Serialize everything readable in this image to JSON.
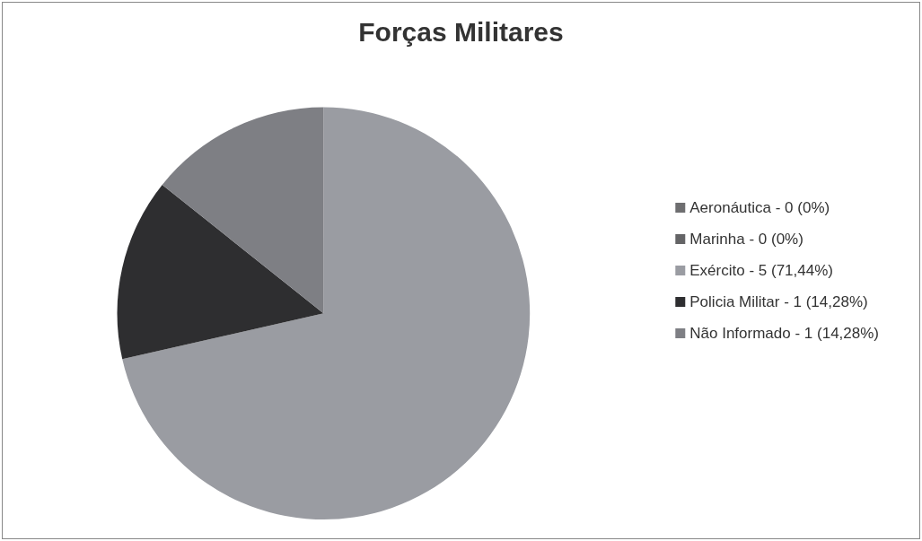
{
  "chart_data": {
    "type": "pie",
    "title": "Forças Militares",
    "categories": [
      "Aeronáutica - 0 (0%)",
      "Marinha - 0 (0%)",
      "Exército - 5 (71,44%)",
      "Policia Militar - 1 (14,28%)",
      "Não Informado - 1 (14,28%)"
    ],
    "values": [
      0,
      0,
      71.44,
      14.28,
      14.28
    ],
    "colors": [
      "#6e6e70",
      "#646466",
      "#9a9ca2",
      "#2e2e30",
      "#7e7f84"
    ],
    "legend": "right"
  }
}
